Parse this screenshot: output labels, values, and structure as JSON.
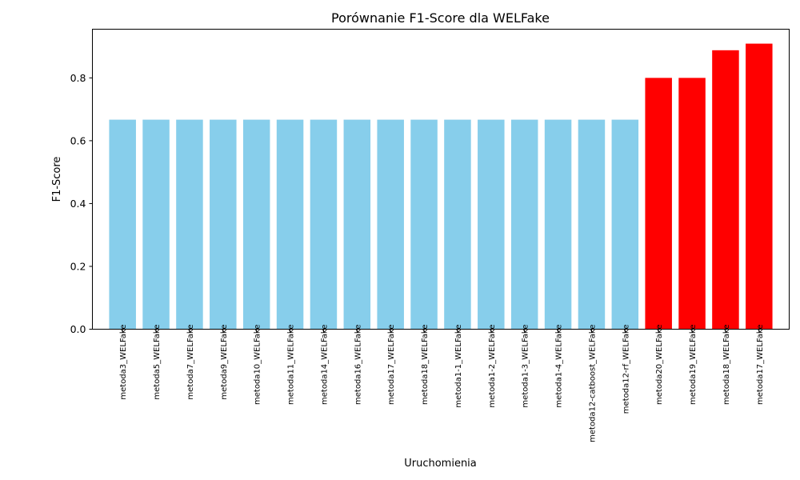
{
  "chart_data": {
    "type": "bar",
    "title": "Porównanie F1-Score dla WELFake",
    "xlabel": "Uruchomienia",
    "ylabel": "F1-Score",
    "ylim": [
      0,
      0.955
    ],
    "yticks": [
      0.0,
      0.2,
      0.4,
      0.6,
      0.8
    ],
    "ytick_labels": [
      "0.0",
      "0.2",
      "0.4",
      "0.6",
      "0.8"
    ],
    "grid": false,
    "categories": [
      "metoda3_WELFake",
      "metoda5_WELFake",
      "metoda7_WELFake",
      "metoda9_WELFake",
      "metoda10_WELFake",
      "metoda11_WELFake",
      "metoda14_WELFake",
      "metoda16_WELFake",
      "metoda17_WELFake",
      "metoda18_WELFake",
      "metoda1-1_WELFake",
      "metoda1-2_WELFake",
      "metoda1-3_WELFake",
      "metoda1-4_WELFake",
      "metoda12-catboost_WELFake",
      "metoda12-rf_WELFake",
      "metoda20_WELFake",
      "metoda19_WELFake",
      "metoda18_WELFake",
      "metoda17_WELFake"
    ],
    "values": [
      0.667,
      0.667,
      0.667,
      0.667,
      0.667,
      0.667,
      0.667,
      0.667,
      0.667,
      0.667,
      0.667,
      0.667,
      0.667,
      0.667,
      0.667,
      0.667,
      0.8,
      0.8,
      0.888,
      0.909
    ],
    "bar_colors": [
      "#87ceeb",
      "#87ceeb",
      "#87ceeb",
      "#87ceeb",
      "#87ceeb",
      "#87ceeb",
      "#87ceeb",
      "#87ceeb",
      "#87ceeb",
      "#87ceeb",
      "#87ceeb",
      "#87ceeb",
      "#87ceeb",
      "#87ceeb",
      "#87ceeb",
      "#87ceeb",
      "#ff0000",
      "#ff0000",
      "#ff0000",
      "#ff0000"
    ]
  }
}
